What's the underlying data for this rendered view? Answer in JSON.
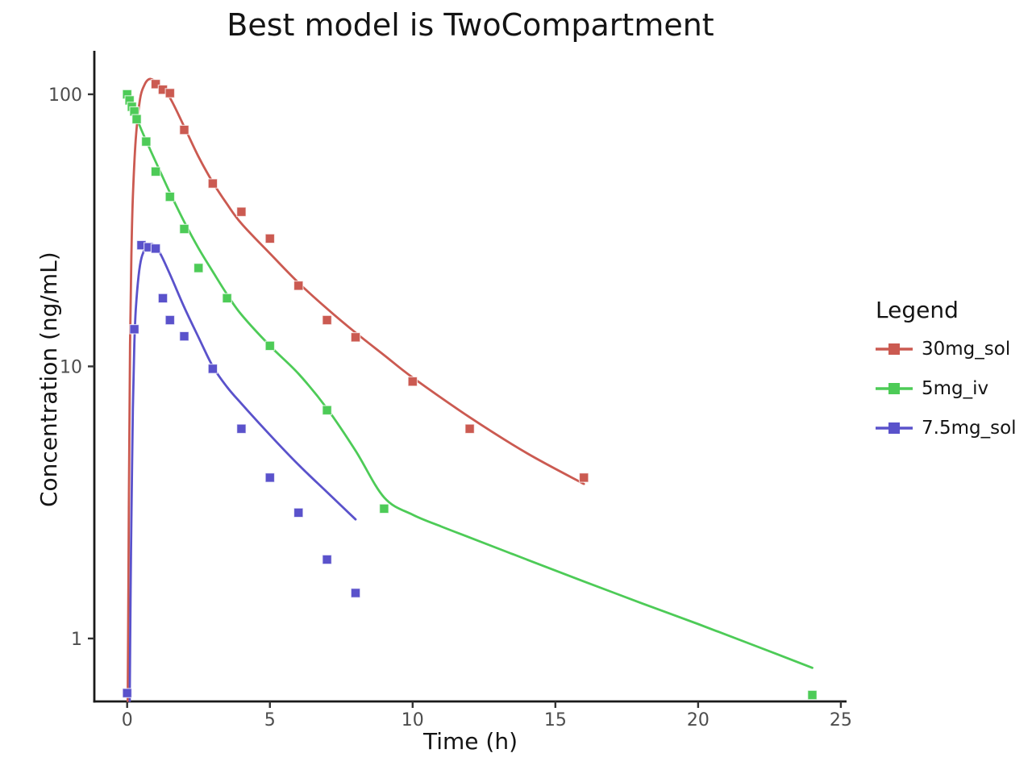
{
  "title": "Best model is TwoCompartment",
  "colors": {
    "series_30mg_sol": "#cb5a51",
    "series_5mg_iv": "#4dcb57",
    "series_7_5mg_sol": "#5a52cb",
    "axis_line": "#1a1a1a",
    "tick_label": "#4d4d4d"
  },
  "chart_data": {
    "type": "line",
    "title": "Best model is TwoCompartment",
    "xlabel": "Time (h)",
    "ylabel": "Concentration (ng/mL)",
    "y_scale": "log",
    "grid": false,
    "xlim": [
      -1.15,
      25.2
    ],
    "ylim": [
      0.587,
      144.5
    ],
    "x_ticks": [
      0,
      5,
      10,
      15,
      20,
      25
    ],
    "y_ticks": [
      1,
      10,
      100
    ],
    "legend": {
      "title": "Legend",
      "position": "right"
    },
    "series": [
      {
        "name": "30mg_sol",
        "color": "#cb5a51",
        "marker": "square",
        "observed": {
          "t": [
            1,
            1.25,
            1.5,
            2,
            3,
            4,
            5,
            6,
            7,
            8,
            10,
            12,
            16
          ],
          "c": [
            109,
            104,
            101,
            74,
            47,
            37,
            29.5,
            19.8,
            14.8,
            12.8,
            8.8,
            5.9,
            3.9
          ]
        },
        "fit": {
          "t": [
            0.02,
            0.06,
            0.1,
            0.15,
            0.2,
            0.3,
            0.45,
            0.6,
            0.75,
            0.9,
            1.1,
            1.5,
            2,
            2.5,
            3,
            3.5,
            4,
            5,
            6,
            7,
            8,
            9,
            10,
            12,
            14,
            16
          ],
          "c": [
            0.59,
            3,
            12,
            26,
            42,
            68,
            96,
            108,
            113.5,
            113,
            109,
            97,
            76,
            59,
            47.5,
            39.5,
            33.5,
            26,
            20.3,
            16.3,
            13.3,
            11,
            9.1,
            6.5,
            4.8,
            3.7
          ]
        }
      },
      {
        "name": "5mg_iv",
        "color": "#4dcb57",
        "marker": "square",
        "observed": {
          "t": [
            0,
            0.083,
            0.167,
            0.25,
            0.333,
            0.667,
            1,
            1.5,
            2,
            2.5,
            3.5,
            5,
            7,
            9,
            24
          ],
          "c": [
            100,
            95,
            90,
            86.5,
            81,
            67,
            52,
            42,
            32,
            23,
            17.8,
            11.9,
            6.9,
            3,
            0.62
          ]
        },
        "fit": {
          "t": [
            0,
            0.25,
            0.5,
            0.75,
            1,
            1.5,
            2,
            2.5,
            3,
            3.5,
            4,
            5,
            6,
            7,
            8,
            9,
            10,
            11,
            12,
            14,
            16,
            18,
            20,
            22,
            24
          ],
          "c": [
            101,
            86,
            74,
            64.5,
            56.5,
            43.5,
            34,
            27.2,
            22.3,
            18.4,
            15.5,
            11.9,
            9.4,
            7,
            4.9,
            3.3,
            2.85,
            2.58,
            2.35,
            1.95,
            1.62,
            1.35,
            1.13,
            0.94,
            0.78
          ]
        }
      },
      {
        "name": "7.5mg_sol",
        "color": "#5a52cb",
        "marker": "square",
        "observed": {
          "t": [
            0,
            0.25,
            0.5,
            0.75,
            1,
            1.25,
            1.5,
            2,
            3,
            4,
            5,
            6,
            7,
            8
          ],
          "c": [
            0.63,
            13.7,
            27.9,
            27.4,
            27.1,
            17.8,
            14.8,
            12.9,
            9.8,
            5.9,
            3.9,
            2.9,
            1.95,
            1.47
          ]
        },
        "fit": {
          "t": [
            0.09,
            0.12,
            0.15,
            0.2,
            0.25,
            0.3,
            0.4,
            0.5,
            0.65,
            0.8,
            1,
            1.2,
            1.5,
            2,
            2.5,
            3,
            3.5,
            4,
            5,
            6,
            7,
            8
          ],
          "c": [
            0.59,
            1.5,
            2.8,
            7,
            12,
            16,
            21.5,
            25,
            27.3,
            28.2,
            27.6,
            25.5,
            21.8,
            16.5,
            12.8,
            10,
            8.4,
            7.3,
            5.6,
            4.35,
            3.45,
            2.74
          ]
        }
      }
    ]
  }
}
